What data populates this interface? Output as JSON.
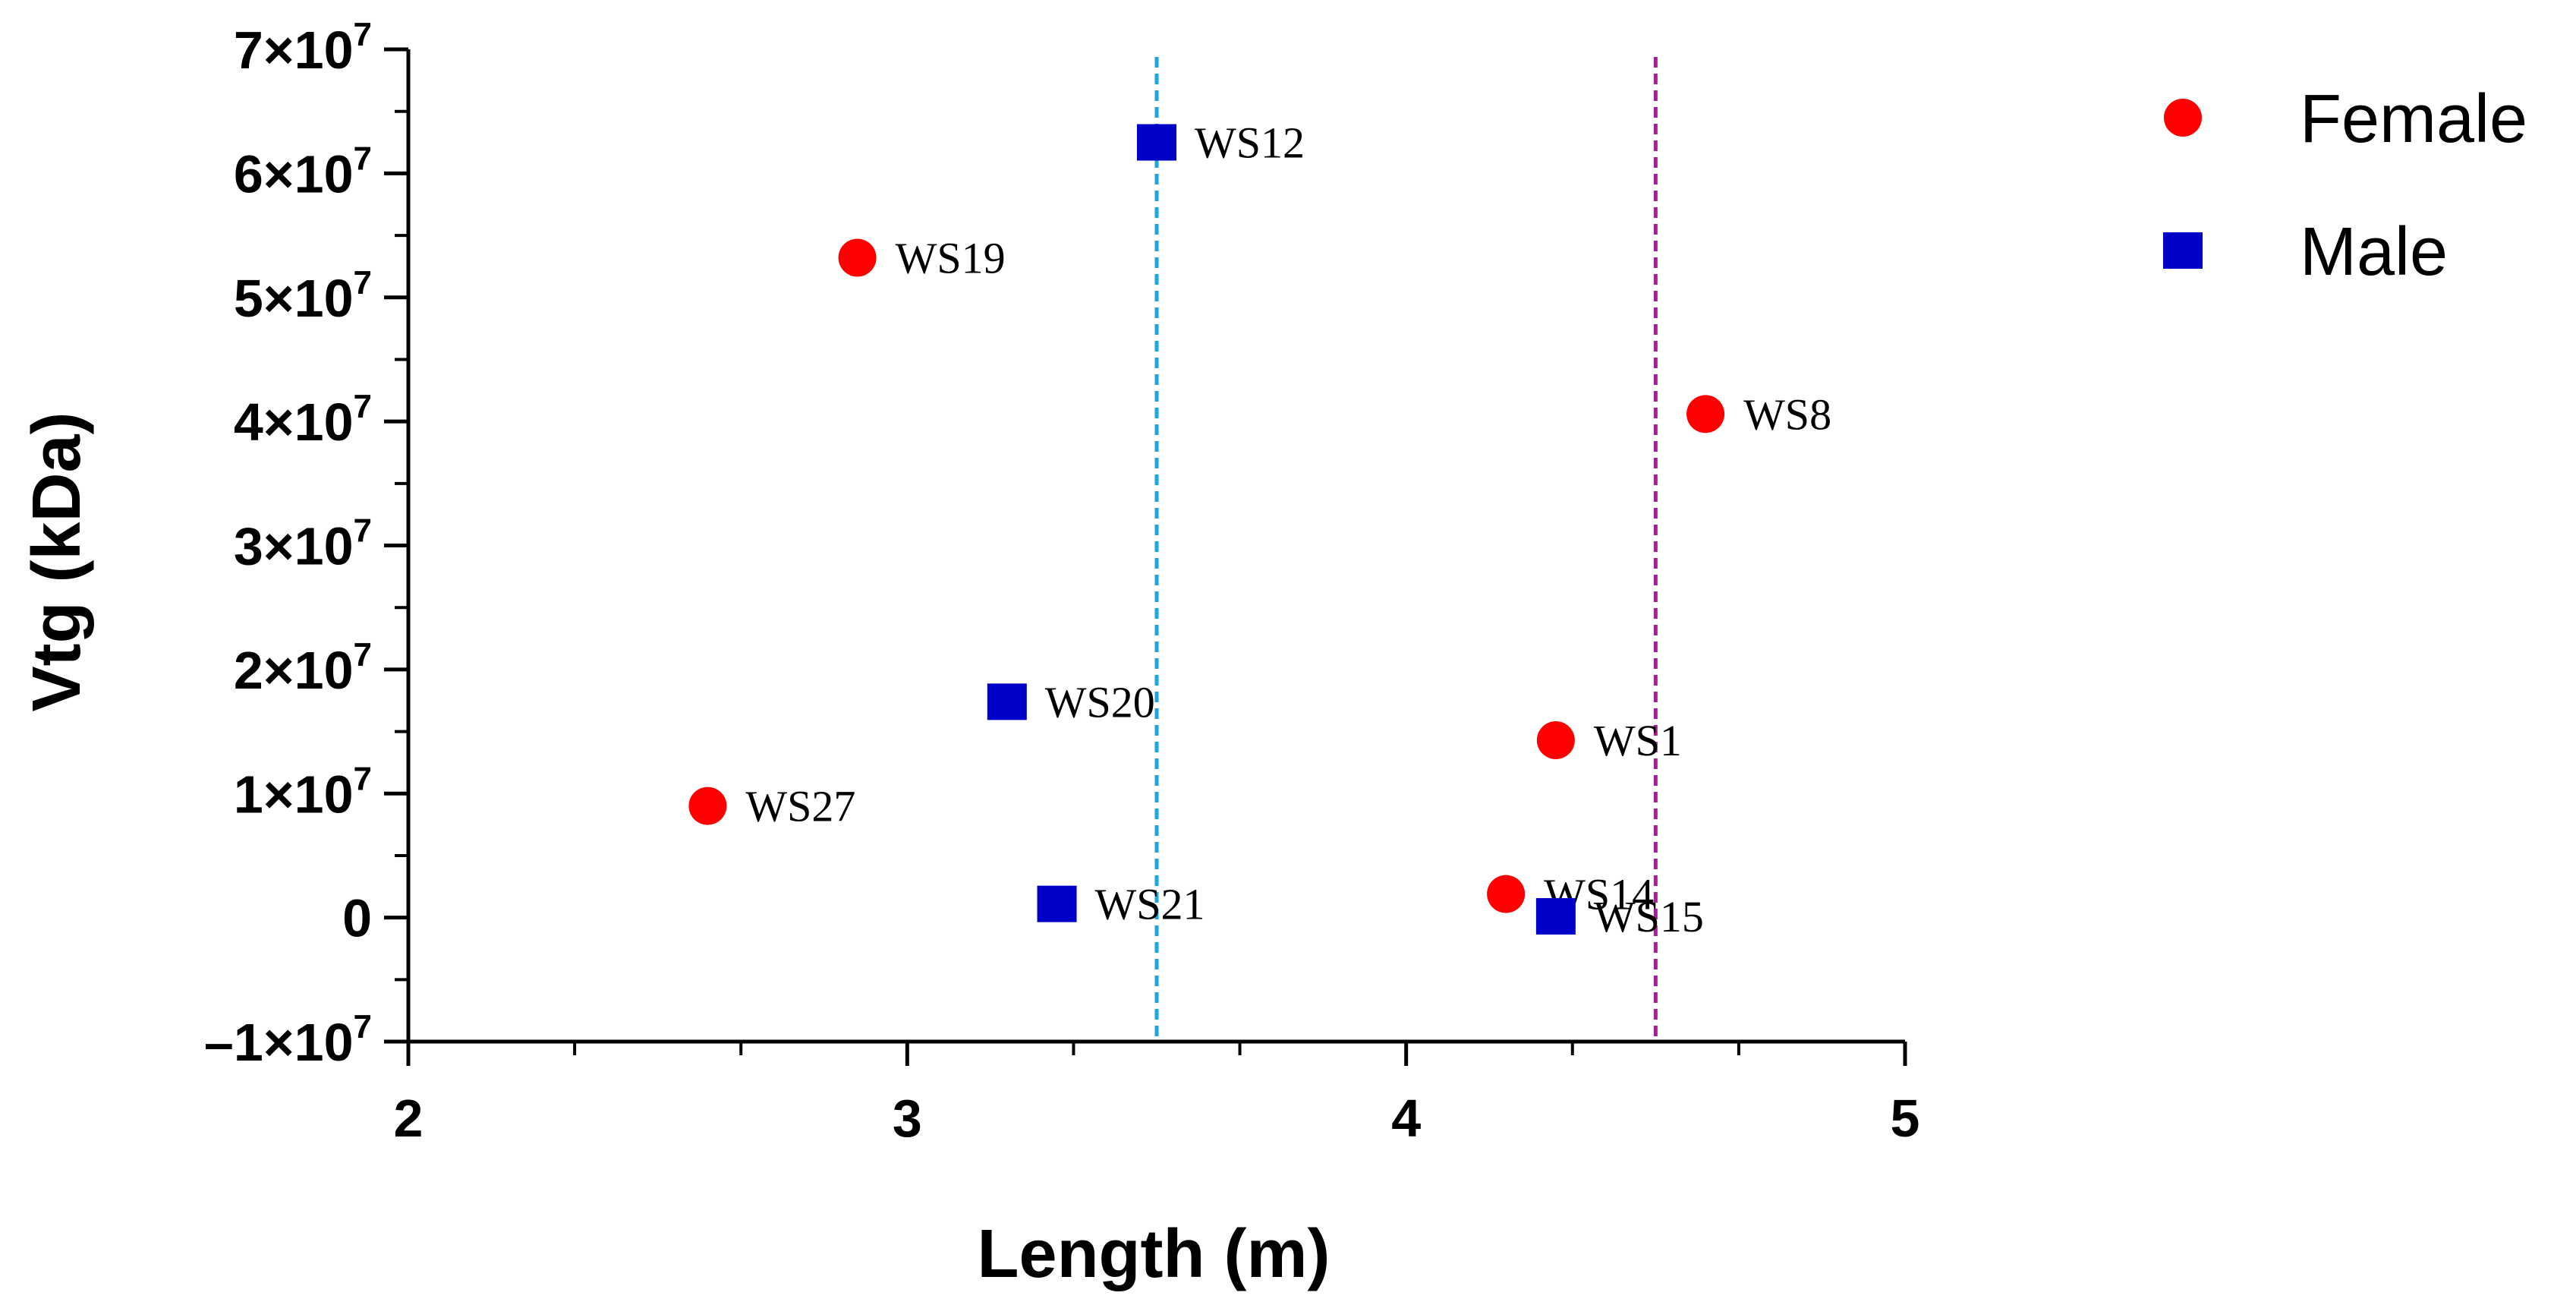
{
  "chart_data": {
    "type": "scatter",
    "xlabel": "Length (m)",
    "ylabel": "Vtg (kDa)",
    "xlim": [
      2,
      5
    ],
    "ylim": [
      -10000000,
      70000000
    ],
    "x_ticks": [
      {
        "value": 2,
        "label": "2"
      },
      {
        "value": 3,
        "label": "3"
      },
      {
        "value": 4,
        "label": "4"
      },
      {
        "value": 5,
        "label": "5"
      }
    ],
    "y_ticks": [
      {
        "value": 70000000,
        "mantissa": "7×10",
        "exp": "7"
      },
      {
        "value": 60000000,
        "mantissa": "6×10",
        "exp": "7"
      },
      {
        "value": 50000000,
        "mantissa": "5×10",
        "exp": "7"
      },
      {
        "value": 40000000,
        "mantissa": "4×10",
        "exp": "7"
      },
      {
        "value": 30000000,
        "mantissa": "3×10",
        "exp": "7"
      },
      {
        "value": 20000000,
        "mantissa": "2×10",
        "exp": "7"
      },
      {
        "value": 10000000,
        "mantissa": "1×10",
        "exp": "7"
      },
      {
        "value": 0,
        "mantissa": "0",
        "exp": ""
      },
      {
        "value": -10000000,
        "mantissa": "–1×10",
        "exp": "7"
      }
    ],
    "reference_lines": [
      {
        "x": 3.5,
        "color": "#1aa7e0"
      },
      {
        "x": 4.5,
        "color": "#b0179b"
      }
    ],
    "series": [
      {
        "name": "Female",
        "marker": "circle",
        "color": "#ff0000",
        "points": [
          {
            "label": "WS19",
            "x": 2.9,
            "y": 53200000
          },
          {
            "label": "WS8",
            "x": 4.6,
            "y": 40600000
          },
          {
            "label": "WS1",
            "x": 4.3,
            "y": 14300000
          },
          {
            "label": "WS27",
            "x": 2.6,
            "y": 9000000
          },
          {
            "label": "WS14",
            "x": 4.2,
            "y": 1900000
          }
        ]
      },
      {
        "name": "Male",
        "marker": "square",
        "color": "#0000c8",
        "points": [
          {
            "label": "WS12",
            "x": 3.5,
            "y": 62500000
          },
          {
            "label": "WS20",
            "x": 3.2,
            "y": 17400000
          },
          {
            "label": "WS21",
            "x": 3.3,
            "y": 1100000
          },
          {
            "label": "WS15",
            "x": 4.3,
            "y": 100000
          }
        ]
      }
    ]
  }
}
